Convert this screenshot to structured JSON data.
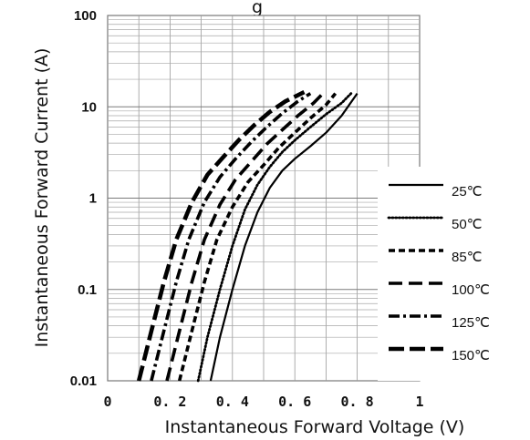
{
  "title_fragment": "g",
  "chart_data": {
    "type": "line",
    "title": "",
    "xlabel": "Instantaneous Forward Voltage (V)",
    "ylabel": "Instantaneous Forward Current (A)",
    "xlim": [
      0,
      1
    ],
    "ylim": [
      0.01,
      100
    ],
    "y_scale": "log",
    "grid": true,
    "x_ticks": [
      0,
      0.2,
      0.4,
      0.6,
      0.8,
      1
    ],
    "x_tick_labels": [
      "0",
      "0.2",
      "0.4",
      "0.6",
      "0.8",
      "1"
    ],
    "y_ticks": [
      0.01,
      0.1,
      1,
      10,
      100
    ],
    "y_tick_labels": [
      "0.01",
      "0.1",
      "1",
      "10",
      "100"
    ],
    "legend_position": "bottom-right",
    "series": [
      {
        "name": "25℃",
        "line_style": "solid",
        "x": [
          0.33,
          0.36,
          0.4,
          0.44,
          0.48,
          0.52,
          0.56,
          0.6,
          0.65,
          0.7,
          0.75,
          0.8
        ],
        "y": [
          0.01,
          0.03,
          0.1,
          0.3,
          0.7,
          1.3,
          2.0,
          2.7,
          3.7,
          5.2,
          8.0,
          14.0
        ]
      },
      {
        "name": "50℃",
        "line_style": "dotted",
        "x": [
          0.29,
          0.32,
          0.36,
          0.4,
          0.44,
          0.48,
          0.52,
          0.56,
          0.6,
          0.65,
          0.7,
          0.75,
          0.78
        ],
        "y": [
          0.01,
          0.03,
          0.1,
          0.3,
          0.75,
          1.4,
          2.2,
          3.2,
          4.3,
          6.0,
          8.3,
          11.0,
          14.0
        ]
      },
      {
        "name": "85℃",
        "line_style": "short-dash",
        "x": [
          0.23,
          0.27,
          0.31,
          0.35,
          0.4,
          0.45,
          0.5,
          0.55,
          0.6,
          0.65,
          0.7,
          0.73
        ],
        "y": [
          0.01,
          0.035,
          0.12,
          0.35,
          0.8,
          1.5,
          2.3,
          3.6,
          5.2,
          7.5,
          10.5,
          14.0
        ]
      },
      {
        "name": "100℃",
        "line_style": "long-dash",
        "x": [
          0.19,
          0.23,
          0.27,
          0.31,
          0.36,
          0.41,
          0.46,
          0.51,
          0.56,
          0.61,
          0.66,
          0.69
        ],
        "y": [
          0.01,
          0.035,
          0.12,
          0.35,
          0.85,
          1.6,
          2.5,
          3.9,
          5.6,
          8.0,
          11.0,
          14.0
        ]
      },
      {
        "name": "125℃",
        "line_style": "dash-dot",
        "x": [
          0.14,
          0.18,
          0.22,
          0.26,
          0.31,
          0.36,
          0.41,
          0.46,
          0.51,
          0.56,
          0.61,
          0.65
        ],
        "y": [
          0.01,
          0.035,
          0.12,
          0.35,
          0.9,
          1.7,
          2.7,
          4.1,
          6.0,
          8.5,
          11.5,
          14.0
        ]
      },
      {
        "name": "150℃",
        "line_style": "heavy-long-dash",
        "x": [
          0.1,
          0.14,
          0.18,
          0.22,
          0.27,
          0.32,
          0.37,
          0.42,
          0.47,
          0.52,
          0.57,
          0.63
        ],
        "y": [
          0.01,
          0.035,
          0.12,
          0.35,
          0.9,
          1.8,
          2.8,
          4.3,
          6.3,
          8.8,
          11.5,
          14.5
        ]
      }
    ]
  }
}
